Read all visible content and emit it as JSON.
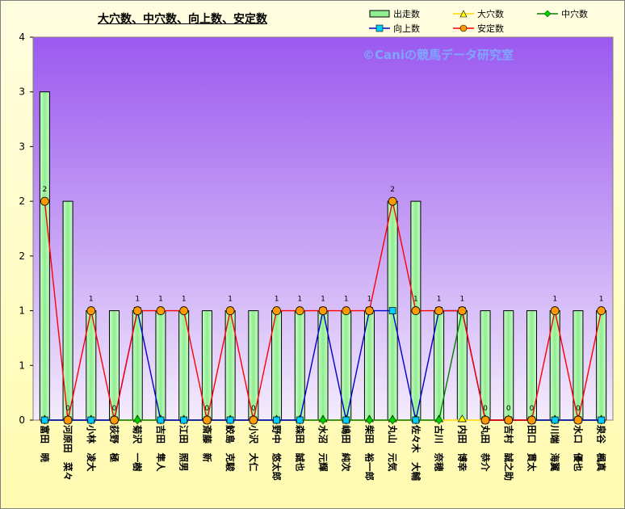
{
  "chart_data": {
    "type": "bar",
    "title": "大穴数、中穴数、向上数、安定数",
    "watermark": "©Caniの競馬データ研究室",
    "yticks": [
      "4",
      "3",
      "3",
      "2",
      "2",
      "1",
      "1",
      "0"
    ],
    "ylim": [
      0,
      3.5
    ],
    "grid": false,
    "legend_position": "top-right",
    "categories": [
      "富田　暁",
      "河原田　菜々",
      "小林　凌大",
      "荻野　極",
      "菊沢　一樹",
      "吉田　隼人",
      "江田　照男",
      "斎藤　新",
      "鮫島　克駿",
      "小沢　大仁",
      "野中　悠太郎",
      "森田　誠也",
      "水沼　元輝",
      "嶋田　純次",
      "柴田　裕一郎",
      "丸山　元気",
      "佐々木　大輔",
      "古川　奈穂",
      "内田　博幸",
      "丸田　恭介",
      "吉村　誠之助",
      "田口　貫太",
      "川端　海翼",
      "水口　優也",
      "泉谷　楓真"
    ],
    "series": [
      {
        "name": "出走数",
        "type": "bar",
        "color": "#90ee90",
        "values": [
          3,
          2,
          1,
          1,
          1,
          1,
          1,
          1,
          1,
          1,
          1,
          1,
          1,
          1,
          1,
          2,
          2,
          1,
          1,
          1,
          1,
          1,
          1,
          1,
          1
        ]
      },
      {
        "name": "大穴数",
        "type": "line",
        "color": "#ffd700",
        "values": [
          0,
          0,
          0,
          0,
          0,
          0,
          0,
          0,
          0,
          0,
          0,
          0,
          0,
          0,
          0,
          0,
          0,
          0,
          0,
          0,
          0,
          0,
          0,
          0,
          0
        ]
      },
      {
        "name": "中穴数",
        "type": "line",
        "color": "#008000",
        "values": [
          0,
          0,
          0,
          0,
          0,
          0,
          0,
          0,
          0,
          0,
          0,
          0,
          0,
          0,
          0,
          0,
          0,
          0,
          1,
          0,
          0,
          0,
          0,
          0,
          0
        ]
      },
      {
        "name": "向上数",
        "type": "line",
        "color": "#0000cc",
        "values": [
          0,
          0,
          0,
          0,
          1,
          0,
          0,
          0,
          0,
          0,
          0,
          0,
          1,
          0,
          1,
          1,
          0,
          1,
          1,
          0,
          0,
          0,
          0,
          0,
          0
        ]
      },
      {
        "name": "安定数",
        "type": "line",
        "color": "#ff0000",
        "values": [
          2,
          0,
          1,
          0,
          1,
          1,
          1,
          0,
          1,
          0,
          1,
          1,
          1,
          1,
          1,
          2,
          1,
          1,
          1,
          0,
          0,
          0,
          1,
          0,
          1
        ]
      }
    ],
    "data_labels": [
      "2",
      "0",
      "1",
      "0",
      "1",
      "1",
      "1",
      "0",
      "1",
      "0",
      "1",
      "1",
      "1",
      "1",
      "1",
      "2",
      "1",
      "1",
      "1",
      "0",
      "0",
      "0",
      "1",
      "0",
      "1"
    ]
  }
}
